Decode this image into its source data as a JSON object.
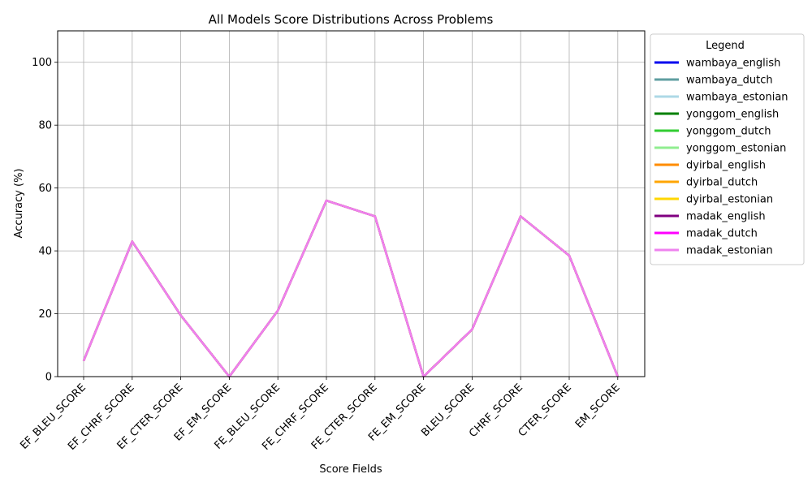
{
  "chart_data": {
    "type": "line",
    "title": "All Models Score Distributions Across Problems",
    "xlabel": "Score Fields",
    "ylabel": "Accuracy (%)",
    "ylim": [
      0,
      110
    ],
    "yticks": [
      0,
      20,
      40,
      60,
      80,
      100
    ],
    "grid": true,
    "legend_title": "Legend",
    "legend_position": "outside-right",
    "categories": [
      "EF_BLEU_SCORE",
      "EF_CHRF_SCORE",
      "EF_CTER_SCORE",
      "EF_EM_SCORE",
      "FE_BLEU_SCORE",
      "FE_CHRF_SCORE",
      "FE_CTER_SCORE",
      "FE_EM_SCORE",
      "BLEU_SCORE",
      "CHRF_SCORE",
      "CTER_SCORE",
      "EM_SCORE"
    ],
    "series": [
      {
        "name": "wambaya_english",
        "color": "#0000ee",
        "values": [
          5,
          43,
          19.5,
          0,
          21,
          56,
          51,
          0,
          15,
          51,
          38.5,
          0
        ]
      },
      {
        "name": "wambaya_dutch",
        "color": "#5f9ea0",
        "values": [
          5,
          43,
          19.5,
          0,
          21,
          56,
          51,
          0,
          15,
          51,
          38.5,
          0
        ]
      },
      {
        "name": "wambaya_estonian",
        "color": "#add8e6",
        "values": [
          5,
          43,
          19.5,
          0,
          21,
          56,
          51,
          0,
          15,
          51,
          38.5,
          0
        ]
      },
      {
        "name": "yonggom_english",
        "color": "#008000",
        "values": [
          5,
          43,
          19.5,
          0,
          21,
          56,
          51,
          0,
          15,
          51,
          38.5,
          0
        ]
      },
      {
        "name": "yonggom_dutch",
        "color": "#32cd32",
        "values": [
          5,
          43,
          19.5,
          0,
          21,
          56,
          51,
          0,
          15,
          51,
          38.5,
          0
        ]
      },
      {
        "name": "yonggom_estonian",
        "color": "#90ee90",
        "values": [
          5,
          43,
          19.5,
          0,
          21,
          56,
          51,
          0,
          15,
          51,
          38.5,
          0
        ]
      },
      {
        "name": "dyirbal_english",
        "color": "#ff8c00",
        "values": [
          5,
          43,
          19.5,
          0,
          21,
          56,
          51,
          0,
          15,
          51,
          38.5,
          0
        ]
      },
      {
        "name": "dyirbal_dutch",
        "color": "#ffa500",
        "values": [
          5,
          43,
          19.5,
          0,
          21,
          56,
          51,
          0,
          15,
          51,
          38.5,
          0
        ]
      },
      {
        "name": "dyirbal_estonian",
        "color": "#ffd700",
        "values": [
          5,
          43,
          19.5,
          0,
          21,
          56,
          51,
          0,
          15,
          51,
          38.5,
          0
        ]
      },
      {
        "name": "madak_english",
        "color": "#800080",
        "values": [
          5,
          43,
          19.5,
          0,
          21,
          56,
          51,
          0,
          15,
          51,
          38.5,
          0
        ]
      },
      {
        "name": "madak_dutch",
        "color": "#ff00ff",
        "values": [
          5,
          43,
          19.5,
          0,
          21,
          56,
          51,
          0,
          15,
          51,
          38.5,
          0
        ]
      },
      {
        "name": "madak_estonian",
        "color": "#ee82ee",
        "values": [
          5,
          43,
          19.5,
          0,
          21,
          56,
          51,
          0,
          15,
          51,
          38.5,
          0
        ]
      }
    ]
  }
}
